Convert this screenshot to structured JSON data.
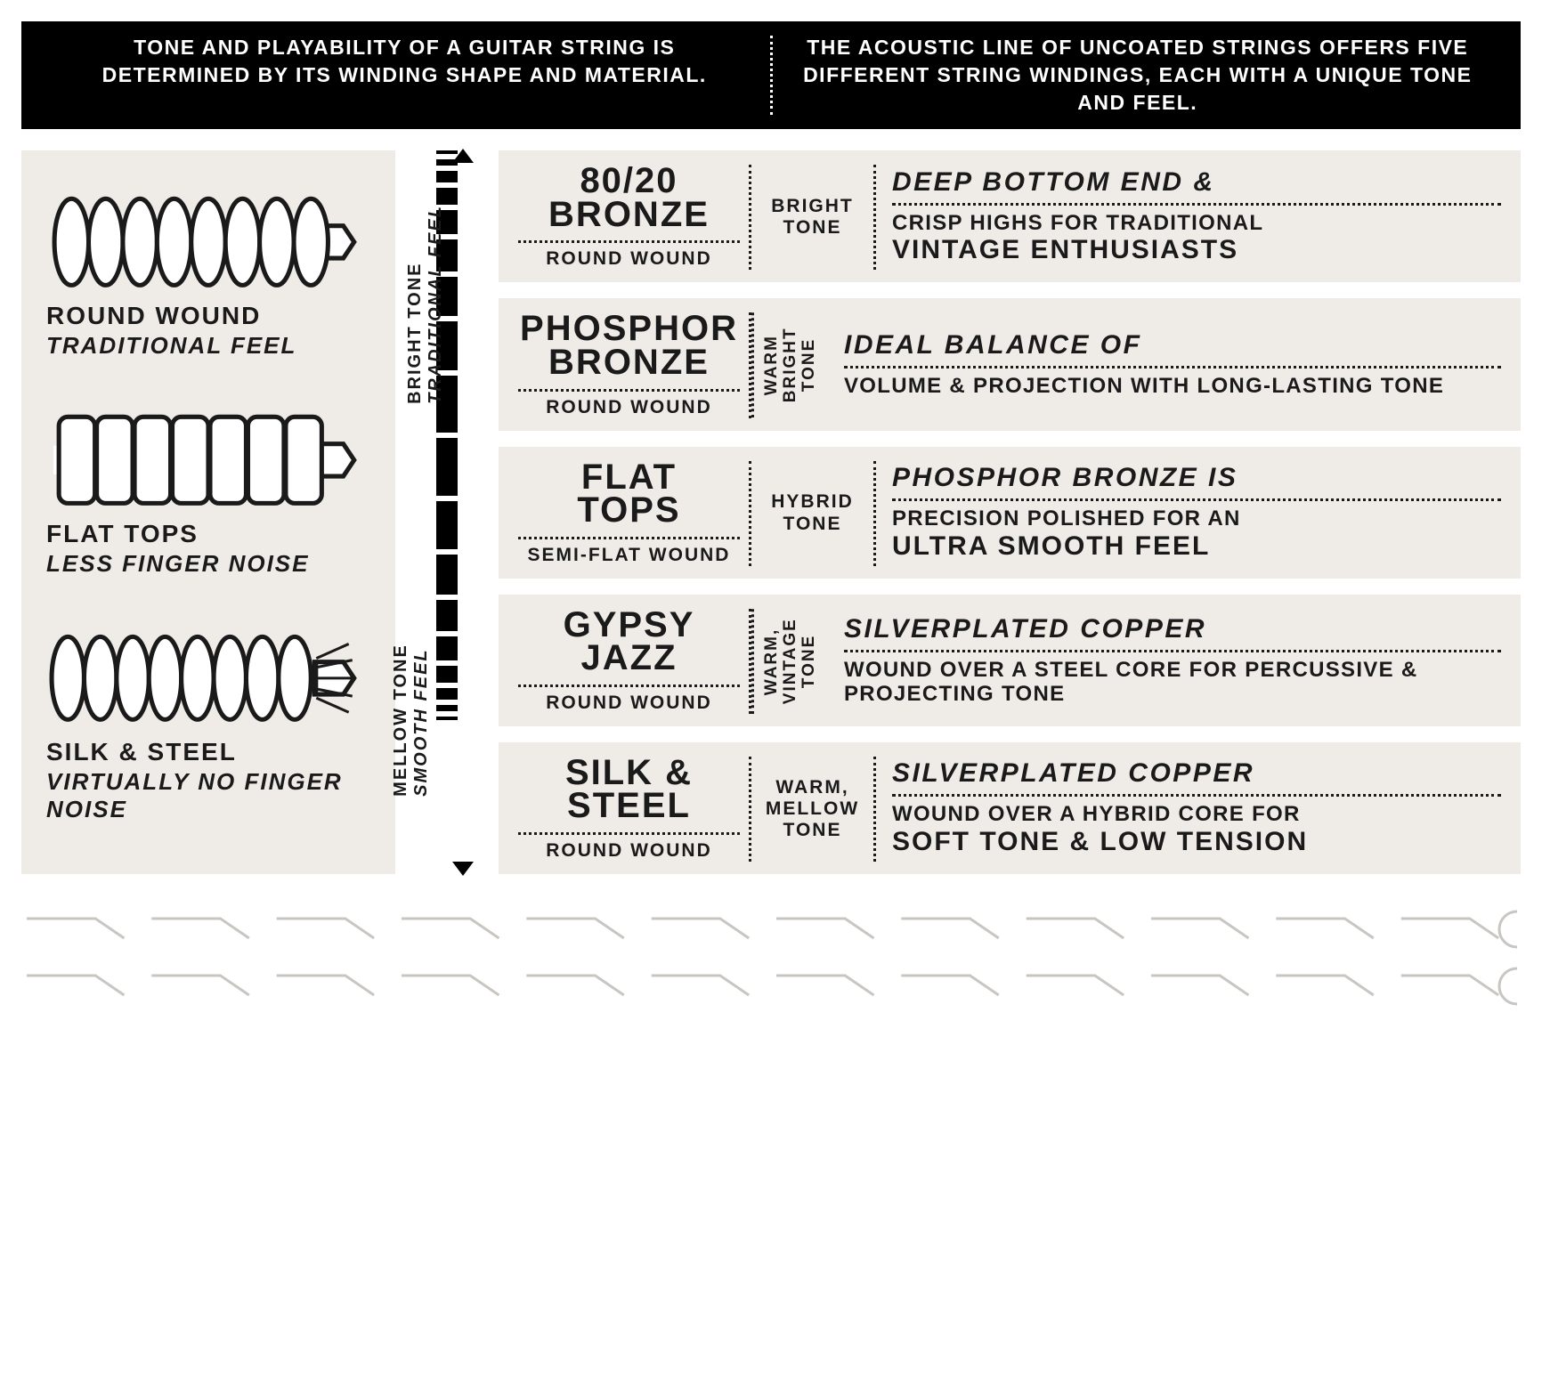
{
  "colors": {
    "bg": "#ffffff",
    "panel": "#efece8",
    "ink": "#1a1a1a",
    "black": "#000000",
    "white": "#ffffff"
  },
  "header": {
    "left": "TONE AND PLAYABILITY OF A GUITAR STRING IS DETERMINED BY ITS WINDING SHAPE AND MATERIAL.",
    "right": "THE ACOUSTIC LINE OF UNCOATED STRINGS OFFERS FIVE DIFFERENT STRING WINDINGS, EACH WITH A UNIQUE TONE AND FEEL."
  },
  "windings": [
    {
      "title": "ROUND WOUND",
      "sub": "TRADITIONAL FEEL",
      "shape": "round"
    },
    {
      "title": "FLAT TOPS",
      "sub": "LESS FINGER NOISE",
      "shape": "flat"
    },
    {
      "title": "SILK & STEEL",
      "sub": "VIRTUALLY NO FINGER NOISE",
      "shape": "silk"
    }
  ],
  "scale": {
    "top_bold": "BRIGHT TONE",
    "top_italic": "TRADITIONAL FEEL",
    "bottom_bold": "MELLOW TONE",
    "bottom_italic": "SMOOTH FEEL",
    "segment_count": 18,
    "min_h": 4,
    "max_h": 70
  },
  "cards": [
    {
      "name_l1": "80/20",
      "name_l2": "BRONZE",
      "wound": "ROUND WOUND",
      "tone": "BRIGHT TONE",
      "tone_vert": false,
      "hl": "DEEP BOTTOM END &",
      "body_pre": "CRISP HIGHS FOR TRADITIONAL",
      "body_em": "VINTAGE ENTHUSIASTS"
    },
    {
      "name_l1": "PHOSPHOR",
      "name_l2": "BRONZE",
      "wound": "ROUND WOUND",
      "tone": "WARM BRIGHT TONE",
      "tone_vert": true,
      "hl": "IDEAL BALANCE OF",
      "body_pre": "VOLUME & PROJECTION WITH LONG-LASTING TONE",
      "body_em": ""
    },
    {
      "name_l1": "FLAT",
      "name_l2": "TOPS",
      "wound": "SEMI-FLAT WOUND",
      "tone": "HYBRID TONE",
      "tone_vert": false,
      "hl": "PHOSPHOR BRONZE IS",
      "body_pre": "PRECISION POLISHED FOR AN",
      "body_em": "ULTRA SMOOTH FEEL"
    },
    {
      "name_l1": "GYPSY",
      "name_l2": "JAZZ",
      "wound": "ROUND WOUND",
      "tone": "WARM, VINTAGE TONE",
      "tone_vert": true,
      "hl": "SILVERPLATED COPPER",
      "body_pre": "WOUND OVER A STEEL CORE FOR PERCUSSIVE & PROJECTING TONE",
      "body_em": ""
    },
    {
      "name_l1": "SILK &",
      "name_l2": "STEEL",
      "wound": "ROUND WOUND",
      "tone": "WARM, MELLOW TONE",
      "tone_vert": false,
      "hl": "SILVERPLATED COPPER",
      "body_pre": "WOUND OVER A HYBRID CORE FOR",
      "body_em": "SOFT TONE & LOW TENSION"
    }
  ],
  "perforation": {
    "tabs": 12,
    "stroke": "#c9c6c2",
    "sw": 3
  }
}
